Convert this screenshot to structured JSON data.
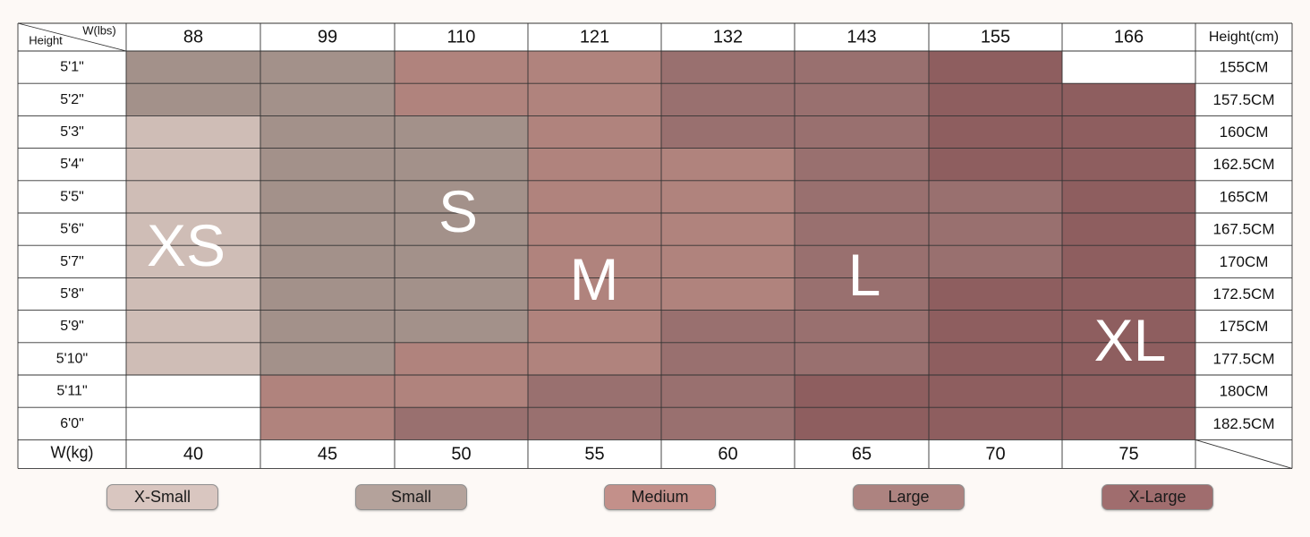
{
  "chart_data": {
    "type": "table",
    "corner_labels": {
      "weight_unit": "W(lbs)",
      "height_unit": "Height",
      "cm_header": "Height(cm)",
      "kg_label": "W(kg)"
    },
    "weights_lbs": [
      "88",
      "99",
      "110",
      "121",
      "132",
      "143",
      "155",
      "166"
    ],
    "weights_kg": [
      "40",
      "45",
      "50",
      "55",
      "60",
      "65",
      "70",
      "75"
    ],
    "heights_ft": [
      "5'1\"",
      "5'2\"",
      "5'3\"",
      "5'4\"",
      "5'5\"",
      "5'6\"",
      "5'7\"",
      "5'8\"",
      "5'9\"",
      "5'10\"",
      "5'11\"",
      "6'0\""
    ],
    "heights_cm": [
      "155CM",
      "157.5CM",
      "160CM",
      "162.5CM",
      "165CM",
      "167.5CM",
      "170CM",
      "172.5CM",
      "175CM",
      "177.5CM",
      "180CM",
      "182.5CM"
    ],
    "grid": [
      [
        "S",
        "S",
        "M",
        "M",
        "L",
        "L",
        "XL",
        ""
      ],
      [
        "S",
        "S",
        "M",
        "M",
        "L",
        "L",
        "XL",
        "XL"
      ],
      [
        "XS",
        "S",
        "S",
        "M",
        "L",
        "L",
        "XL",
        "XL"
      ],
      [
        "XS",
        "S",
        "S",
        "M",
        "M",
        "L",
        "XL",
        "XL"
      ],
      [
        "XS",
        "S",
        "S",
        "M",
        "M",
        "L",
        "L",
        "XL"
      ],
      [
        "XS",
        "S",
        "S",
        "M",
        "M",
        "L",
        "L",
        "XL"
      ],
      [
        "XS",
        "S",
        "S",
        "M",
        "M",
        "L",
        "L",
        "XL"
      ],
      [
        "XS",
        "S",
        "S",
        "M",
        "M",
        "L",
        "XL",
        "XL"
      ],
      [
        "XS",
        "S",
        "S",
        "M",
        "L",
        "L",
        "XL",
        "XL"
      ],
      [
        "XS",
        "S",
        "M",
        "M",
        "L",
        "L",
        "XL",
        "XL"
      ],
      [
        "",
        "M",
        "M",
        "L",
        "L",
        "XL",
        "XL",
        "XL"
      ],
      [
        "",
        "M",
        "L",
        "L",
        "L",
        "XL",
        "XL",
        "XL"
      ]
    ],
    "region_labels": [
      {
        "size": "XS",
        "text": "XS"
      },
      {
        "size": "S",
        "text": "S"
      },
      {
        "size": "M",
        "text": "M"
      },
      {
        "size": "L",
        "text": "L"
      },
      {
        "size": "XL",
        "text": "XL"
      }
    ],
    "legend": [
      {
        "size": "XS",
        "label": "X-Small"
      },
      {
        "size": "S",
        "label": "Small"
      },
      {
        "size": "M",
        "label": "Medium"
      },
      {
        "size": "L",
        "label": "Large"
      },
      {
        "size": "XL",
        "label": "X-Large"
      }
    ],
    "colors": {
      "XS": "#cfbdb6",
      "S": "#a3918a",
      "M": "#b0837d",
      "L": "#99706f",
      "XL": "#8e5e5f",
      "legend_XS": "#d9c6c0",
      "legend_S": "#b4a29b",
      "legend_M": "#c3908a",
      "legend_L": "#ad8380",
      "legend_XL": "#a06d6e"
    }
  }
}
